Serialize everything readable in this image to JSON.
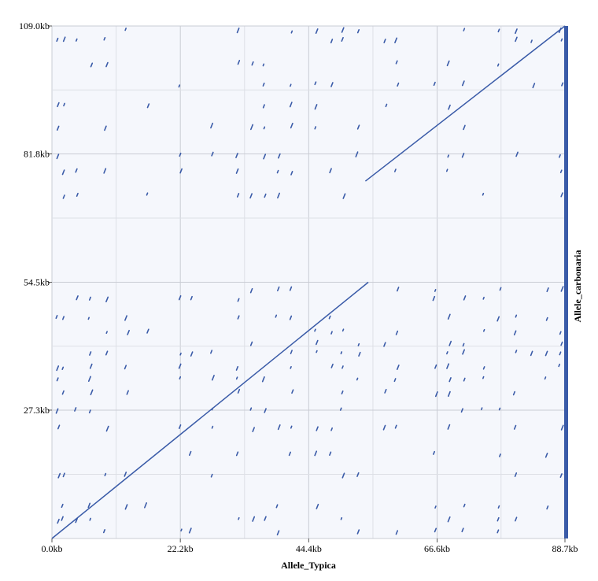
{
  "chart_data": {
    "type": "scatter",
    "xlabel": "Allele_Typica",
    "ylabel": "Allele_carbonaria",
    "xlim": [
      0,
      88.7
    ],
    "ylim": [
      0,
      109.0
    ],
    "x_ticks": [
      "0.0kb",
      "22.2kb",
      "44.4kb",
      "66.6kb",
      "88.7kb"
    ],
    "x_tick_values": [
      0,
      22.2,
      44.4,
      66.6,
      88.7
    ],
    "y_ticks": [
      "27.3kb",
      "54.5kb",
      "81.8kb",
      "109.0kb"
    ],
    "y_tick_values": [
      27.3,
      54.5,
      81.8,
      109.0
    ],
    "grid": true,
    "colors": {
      "background": "#f5f7fc",
      "grid": "#c9ccd4",
      "dots": "#3a5ba8",
      "right_bar": "#3a5ba8"
    },
    "series": [
      {
        "segments": [
          [
            0,
            0,
            54.7,
            54.5
          ],
          [
            54.2,
            76.0,
            88.7,
            109.0
          ]
        ]
      }
    ],
    "noise_columns": [
      0.9,
      1.8,
      4.2,
      6.5,
      9.2,
      12.8,
      16.3,
      22.2,
      24.0,
      27.5,
      32.0,
      34.5,
      36.5,
      38.9,
      41.3,
      45.7,
      48.2,
      50.1,
      52.8,
      57.5,
      59.5,
      66.1,
      68.5,
      71.0,
      74.5,
      77.2,
      80.0,
      83.0,
      85.5,
      87.9
    ],
    "noise_rows": [
      1.5,
      4.0,
      6.8,
      13.5,
      18.0,
      23.5,
      27.3,
      31.0,
      34.0,
      36.5,
      39.5,
      41.5,
      44.0,
      47.0,
      51.0,
      53.0,
      73.0,
      78.0,
      81.5,
      87.5,
      92.0,
      96.5,
      101.0,
      106.0,
      108.0
    ]
  }
}
